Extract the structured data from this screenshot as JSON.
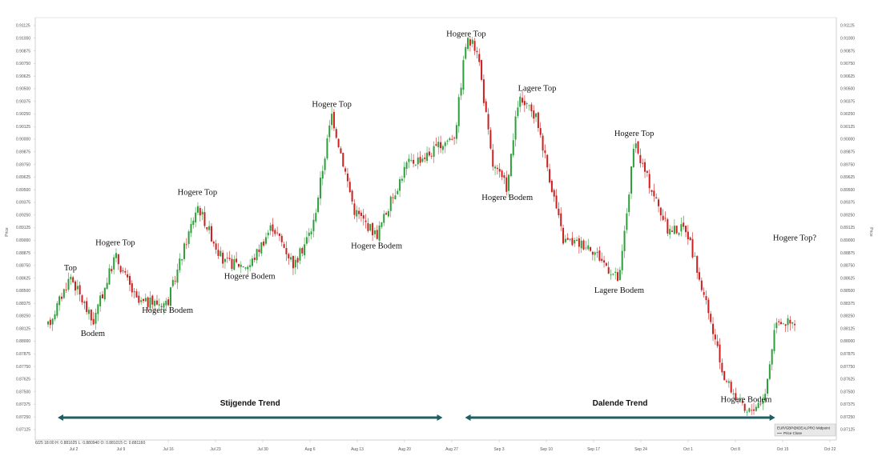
{
  "chart_data": {
    "type": "candlestick",
    "ylabel": "Price",
    "ylabel_right": "Price",
    "ylim": [
      0.87125,
      0.91125
    ],
    "y_ticks": [
      0.91125,
      0.91,
      0.90875,
      0.9075,
      0.90625,
      0.905,
      0.90375,
      0.9025,
      0.90125,
      0.9,
      0.89875,
      0.8975,
      0.89625,
      0.895,
      0.89375,
      0.8925,
      0.89125,
      0.89,
      0.88875,
      0.8875,
      0.88625,
      0.885,
      0.88375,
      0.8825,
      0.88125,
      0.88,
      0.87875,
      0.8775,
      0.87625,
      0.875,
      0.87375,
      0.8725,
      0.87125
    ],
    "x_ticks": [
      "Jul 2",
      "Jul 9",
      "Jul 16",
      "Jul 23",
      "Jul 30",
      "Aug 6",
      "Aug 13",
      "Aug 20",
      "Aug 27",
      "Sep 3",
      "Sep 10",
      "Sep 17",
      "Sep 24",
      "Oct 1",
      "Oct 8",
      "Oct 15",
      "Oct 22"
    ],
    "status_bar": "6/25 18:00  H: 0.881625  L: 0.880940  O: 0.881015  C: 0.881160",
    "legend": {
      "title": "EUR/GBP@IDEALPRO Midpoint",
      "item": "Price Close"
    },
    "colors": {
      "up": "#2e9e3a",
      "down": "#cc1f1f",
      "trend_arrow": "#1f5e63"
    },
    "path": [
      {
        "x": 0.0,
        "y": 0.8815
      },
      {
        "x": 0.03,
        "y": 0.8865
      },
      {
        "x": 0.06,
        "y": 0.8818
      },
      {
        "x": 0.09,
        "y": 0.8885
      },
      {
        "x": 0.12,
        "y": 0.8838
      },
      {
        "x": 0.16,
        "y": 0.8838
      },
      {
        "x": 0.2,
        "y": 0.8935
      },
      {
        "x": 0.235,
        "y": 0.8878
      },
      {
        "x": 0.27,
        "y": 0.8875
      },
      {
        "x": 0.3,
        "y": 0.8915
      },
      {
        "x": 0.33,
        "y": 0.8875
      },
      {
        "x": 0.355,
        "y": 0.8915
      },
      {
        "x": 0.38,
        "y": 0.9025
      },
      {
        "x": 0.41,
        "y": 0.893
      },
      {
        "x": 0.44,
        "y": 0.8905
      },
      {
        "x": 0.48,
        "y": 0.8975
      },
      {
        "x": 0.51,
        "y": 0.8985
      },
      {
        "x": 0.545,
        "y": 0.9005
      },
      {
        "x": 0.56,
        "y": 0.9098
      },
      {
        "x": 0.575,
        "y": 0.909
      },
      {
        "x": 0.595,
        "y": 0.8975
      },
      {
        "x": 0.615,
        "y": 0.8952
      },
      {
        "x": 0.63,
        "y": 0.904
      },
      {
        "x": 0.655,
        "y": 0.902
      },
      {
        "x": 0.69,
        "y": 0.89
      },
      {
        "x": 0.725,
        "y": 0.8895
      },
      {
        "x": 0.765,
        "y": 0.886
      },
      {
        "x": 0.785,
        "y": 0.8995
      },
      {
        "x": 0.83,
        "y": 0.891
      },
      {
        "x": 0.855,
        "y": 0.8912
      },
      {
        "x": 0.88,
        "y": 0.884
      },
      {
        "x": 0.905,
        "y": 0.8765
      },
      {
        "x": 0.935,
        "y": 0.8728
      },
      {
        "x": 0.96,
        "y": 0.8745
      },
      {
        "x": 0.975,
        "y": 0.8823
      },
      {
        "x": 1.0,
        "y": 0.8815
      }
    ],
    "annotations": [
      {
        "text": "Top",
        "x": 0.03,
        "y": 0.887
      },
      {
        "text": "Bodem",
        "x": 0.06,
        "y": 0.8805
      },
      {
        "text": "Hogere Top",
        "x": 0.09,
        "y": 0.8895
      },
      {
        "text": "Hogere Bodem",
        "x": 0.16,
        "y": 0.8828
      },
      {
        "text": "Hogere Top",
        "x": 0.2,
        "y": 0.8945
      },
      {
        "text": "Hogere Bodem",
        "x": 0.27,
        "y": 0.8862
      },
      {
        "text": "Hogere Top",
        "x": 0.38,
        "y": 0.9032
      },
      {
        "text": "Hogere Bodem",
        "x": 0.44,
        "y": 0.8892
      },
      {
        "text": "Hogere Top",
        "x": 0.56,
        "y": 0.9102
      },
      {
        "text": "Hogere Bodem",
        "x": 0.615,
        "y": 0.894
      },
      {
        "text": "Lagere Top",
        "x": 0.655,
        "y": 0.9048
      },
      {
        "text": "Hogere Top",
        "x": 0.785,
        "y": 0.9003
      },
      {
        "text": "Lagere Bodem",
        "x": 0.765,
        "y": 0.8848
      },
      {
        "text": "Hogere Bodem",
        "x": 0.935,
        "y": 0.874
      },
      {
        "text": "Hogere Top?",
        "x": 1.0,
        "y": 0.89
      }
    ],
    "trends": [
      {
        "label": "Stijgende Trend",
        "from": 0.0,
        "to": 0.515
      },
      {
        "label": "Dalende Trend",
        "from": 0.545,
        "to": 0.96
      }
    ]
  }
}
